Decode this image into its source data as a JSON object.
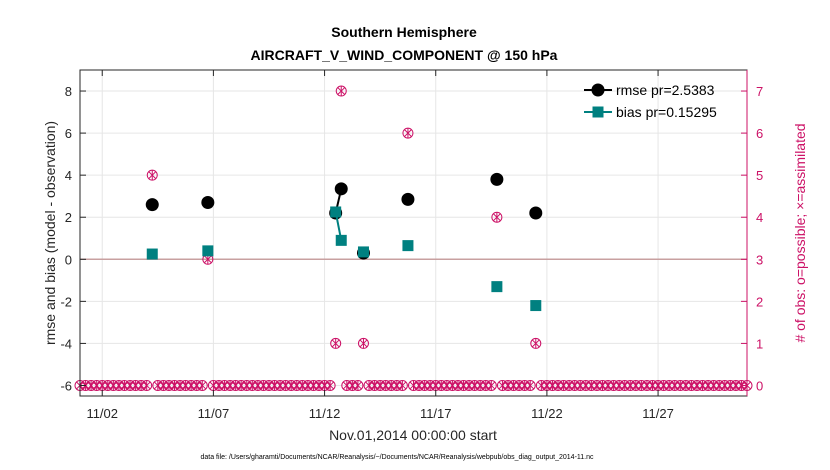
{
  "chart_data": {
    "type": "line",
    "title": "Southern Hemisphere",
    "subtitle": "AIRCRAFT_V_WIND_COMPONENT @ 150 hPa",
    "xlabel": "Nov.01,2014 00:00:00 start",
    "ylabel": "rmse and bias (model - observation)",
    "y2label": "# of obs: o=possible; ×=assimilated",
    "x_range": [
      1,
      31
    ],
    "ylim": [
      -6.5,
      9
    ],
    "y2lim": [
      -0.25,
      7.5
    ],
    "x_ticks": [
      {
        "value": 2,
        "label": "11/02"
      },
      {
        "value": 7,
        "label": "11/07"
      },
      {
        "value": 12,
        "label": "11/12"
      },
      {
        "value": 17,
        "label": "11/17"
      },
      {
        "value": 22,
        "label": "11/22"
      },
      {
        "value": 27,
        "label": "11/27"
      }
    ],
    "y_ticks": [
      "8",
      "6",
      "4",
      "2",
      "0",
      "-2",
      "-4",
      "-6"
    ],
    "y_tick_values": [
      8,
      6,
      4,
      2,
      0,
      -2,
      -4,
      -6
    ],
    "y2_ticks": [
      "7",
      "6",
      "5",
      "4",
      "3",
      "2",
      "1",
      "0"
    ],
    "y2_tick_values": [
      7,
      6,
      5,
      4,
      3,
      2,
      1,
      0
    ],
    "grid": true,
    "legend_position": "top-right",
    "series": [
      {
        "name": "rmse",
        "legend_label": "rmse pr=2.5383",
        "color": "#000000",
        "marker": "circle",
        "points": [
          {
            "x": 4.25,
            "y": 2.6
          },
          {
            "x": 6.75,
            "y": 2.7
          },
          {
            "x": 12.5,
            "y": 2.2
          },
          {
            "x": 12.75,
            "y": 3.35
          },
          {
            "x": 13.75,
            "y": 0.3
          },
          {
            "x": 15.75,
            "y": 2.85
          },
          {
            "x": 19.75,
            "y": 3.8
          },
          {
            "x": 21.5,
            "y": 2.2
          }
        ]
      },
      {
        "name": "bias",
        "legend_label": "bias pr=0.15295",
        "color": "#008080",
        "marker": "square",
        "points": [
          {
            "x": 4.25,
            "y": 0.25
          },
          {
            "x": 6.75,
            "y": 0.4
          },
          {
            "x": 12.5,
            "y": 2.25
          },
          {
            "x": 12.75,
            "y": 0.9
          },
          {
            "x": 13.75,
            "y": 0.35
          },
          {
            "x": 15.75,
            "y": 0.65
          },
          {
            "x": 19.75,
            "y": -1.3
          },
          {
            "x": 21.5,
            "y": -2.2
          }
        ]
      }
    ],
    "obs_counts": {
      "name": "# of obs",
      "color": "#cc1166",
      "nonzero": [
        {
          "x": 4.25,
          "possible": 5,
          "assimilated": 5
        },
        {
          "x": 6.75,
          "possible": 3,
          "assimilated": 3
        },
        {
          "x": 12.5,
          "possible": 1,
          "assimilated": 1
        },
        {
          "x": 12.75,
          "possible": 7,
          "assimilated": 7
        },
        {
          "x": 13.75,
          "possible": 1,
          "assimilated": 1
        },
        {
          "x": 15.75,
          "possible": 6,
          "assimilated": 6
        },
        {
          "x": 19.75,
          "possible": 4,
          "assimilated": 4
        },
        {
          "x": 21.5,
          "possible": 1,
          "assimilated": 1
        }
      ],
      "zero_interval_days": 0.25
    },
    "zero_line_color": "#c8a0a0",
    "footnote": "data file: /Users/gharamti/Documents/NCAR/Reanalysis/~/Documents/NCAR/Reanalysis/webpub/obs_diag_output_2014-11.nc"
  }
}
